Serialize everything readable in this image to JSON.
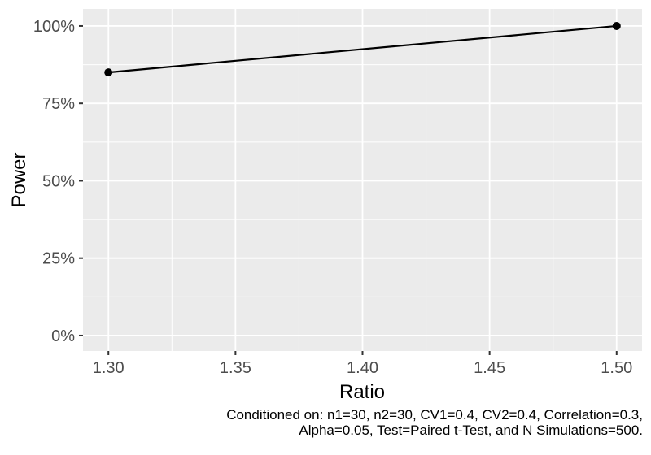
{
  "chart_data": {
    "type": "line",
    "title": "",
    "xlabel": "Ratio",
    "ylabel": "Power",
    "x_range": [
      1.29,
      1.51
    ],
    "y_range": [
      -5,
      105.5
    ],
    "x_ticks": [
      {
        "value": 1.3,
        "label": "1.30"
      },
      {
        "value": 1.35,
        "label": "1.35"
      },
      {
        "value": 1.4,
        "label": "1.40"
      },
      {
        "value": 1.45,
        "label": "1.45"
      },
      {
        "value": 1.5,
        "label": "1.50"
      }
    ],
    "y_ticks": [
      {
        "value": 0,
        "label": "0%"
      },
      {
        "value": 25,
        "label": "25%"
      },
      {
        "value": 50,
        "label": "50%"
      },
      {
        "value": 75,
        "label": "75%"
      },
      {
        "value": 100,
        "label": "100%"
      }
    ],
    "x_minor_ticks": [
      1.325,
      1.375,
      1.425,
      1.475
    ],
    "y_minor_ticks": [
      12.5,
      37.5,
      62.5,
      87.5
    ],
    "grid": "on",
    "legend": "none",
    "series": [
      {
        "name": "Power",
        "marker": "point",
        "x": [
          1.3,
          1.5
        ],
        "y": [
          85,
          100
        ]
      }
    ],
    "caption": {
      "line1": "Conditioned on: n1=30, n2=30, CV1=0.4, CV2=0.4, Correlation=0.3,",
      "line2": "Alpha=0.05, Test=Paired t-Test, and N Simulations=500."
    },
    "theme": {
      "figure_bg": "#FFFFFF",
      "panel_bg": "#EBEBEB",
      "grid_color": "#FFFFFF",
      "series_color": "#000000",
      "point_color": "#000000",
      "tick_label_color": "#4D4D4D",
      "axis_title_color": "#000000",
      "tick_mark_color": "#333333",
      "caption_color": "#000000"
    }
  }
}
